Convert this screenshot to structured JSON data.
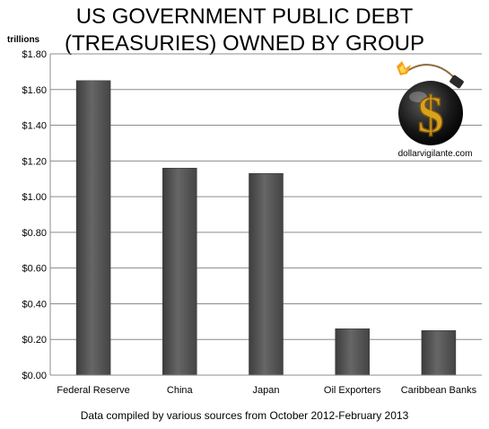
{
  "header": {
    "title_line1": "US GOVERNMENT PUBLIC DEBT",
    "title_line2": "(TREASURIES) OWNED BY GROUP",
    "unit_label": "trillions"
  },
  "footer": {
    "source": "Data compiled by various sources from October 2012-February 2013"
  },
  "logo": {
    "text": "dollarvigilante.com",
    "symbol": "$",
    "icon": "bomb-dollar-icon"
  },
  "colors": {
    "bar_fill": "#555555",
    "gridline": "#8c8c8c",
    "logo_gold": "#d9a21b"
  },
  "chart_data": {
    "type": "bar",
    "categories": [
      "Federal Reserve",
      "China",
      "Japan",
      "Oil Exporters",
      "Caribbean Banks"
    ],
    "values": [
      1.65,
      1.16,
      1.13,
      0.26,
      0.25
    ],
    "ylim": [
      0,
      1.8
    ],
    "yticks": [
      0,
      0.2,
      0.4,
      0.6,
      0.8,
      1.0,
      1.2,
      1.4,
      1.6,
      1.8
    ],
    "ytick_labels": [
      "$0.00",
      "$0.20",
      "$0.40",
      "$0.60",
      "$0.80",
      "$1.00",
      "$1.20",
      "$1.40",
      "$1.60",
      "$1.80"
    ],
    "grid": true,
    "legend": "none"
  }
}
